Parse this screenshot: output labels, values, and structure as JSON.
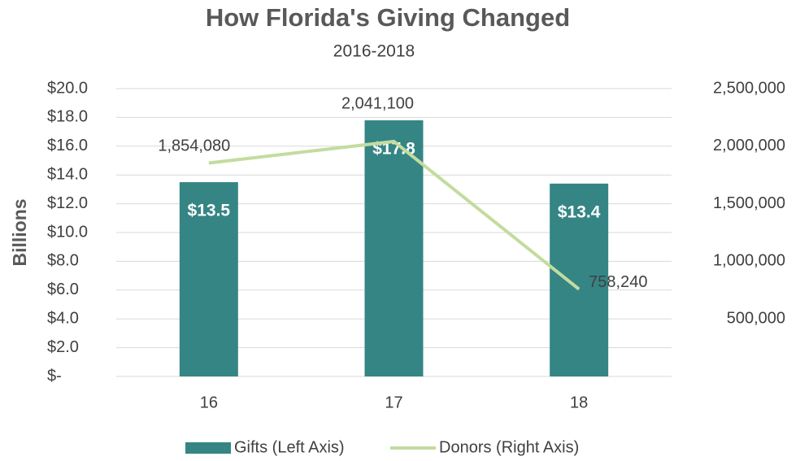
{
  "chart_data": {
    "type": "bar",
    "title": "How Florida's Giving Changed",
    "subtitle": "2016-2018",
    "y_label": "Billions",
    "categories": [
      "16",
      "17",
      "18"
    ],
    "series": [
      {
        "name": "Gifts (Left Axis)",
        "type": "bar",
        "color": "#358585",
        "values": [
          13.5,
          17.8,
          13.4
        ],
        "value_labels": [
          "$13.5",
          "$17.8",
          "$13.4"
        ]
      },
      {
        "name": "Donors (Right Axis)",
        "type": "line",
        "axis": "y2",
        "color": "#c3dc9e",
        "values": [
          1854080,
          2041100,
          758240
        ],
        "value_labels": [
          "1,854,080",
          "2,041,100",
          "758,240"
        ]
      }
    ],
    "ylim": [
      0,
      20
    ],
    "yticks": [
      {
        "value": 0,
        "label": "$-"
      },
      {
        "value": 2,
        "label": "$2.0"
      },
      {
        "value": 4,
        "label": "$4.0"
      },
      {
        "value": 6,
        "label": "$6.0"
      },
      {
        "value": 8,
        "label": "$8.0"
      },
      {
        "value": 10,
        "label": "$10.0"
      },
      {
        "value": 12,
        "label": "$12.0"
      },
      {
        "value": 14,
        "label": "$14.0"
      },
      {
        "value": 16,
        "label": "$16.0"
      },
      {
        "value": 18,
        "label": "$18.0"
      },
      {
        "value": 20,
        "label": "$20.0"
      }
    ],
    "y2lim": [
      0,
      2500000
    ],
    "y2ticks": [
      {
        "value": 500000,
        "label": "500,000"
      },
      {
        "value": 1000000,
        "label": "1,000,000"
      },
      {
        "value": 1500000,
        "label": "1,500,000"
      },
      {
        "value": 2000000,
        "label": "2,000,000"
      },
      {
        "value": 2500000,
        "label": "2,500,000"
      }
    ],
    "grid": true,
    "legend": "bottom"
  }
}
